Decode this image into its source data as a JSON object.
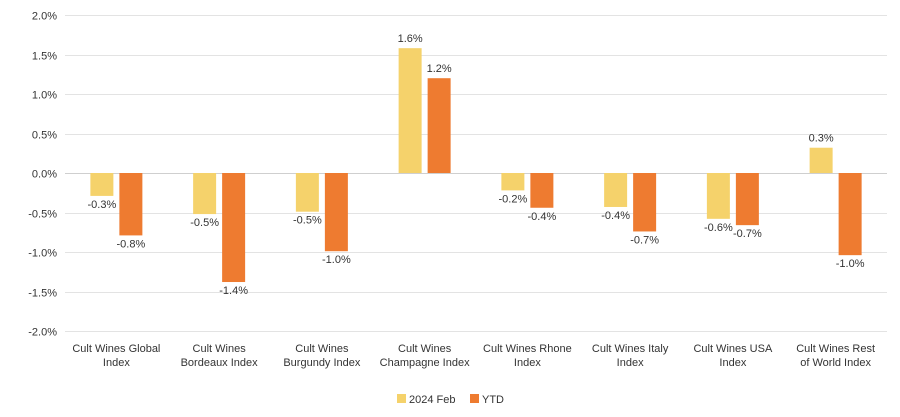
{
  "chart_data": {
    "type": "bar",
    "categories": [
      [
        "Cult Wines Global",
        "Index"
      ],
      [
        "Cult Wines",
        "Bordeaux Index"
      ],
      [
        "Cult Wines",
        "Burgundy Index"
      ],
      [
        "Cult Wines",
        "Champagne Index"
      ],
      [
        "Cult Wines Rhone",
        "Index"
      ],
      [
        "Cult Wines Italy",
        "Index"
      ],
      [
        "Cult Wines USA",
        "Index"
      ],
      [
        "Cult Wines Rest",
        "of World Index"
      ]
    ],
    "series": [
      {
        "name": "2024 Feb",
        "color": "#f5d26b",
        "values": [
          -0.29,
          -0.52,
          -0.49,
          1.58,
          -0.22,
          -0.43,
          -0.58,
          0.32
        ],
        "labels": [
          "-0.3%",
          "-0.5%",
          "-0.5%",
          "1.6%",
          "-0.2%",
          "-0.4%",
          "-0.6%",
          "0.3%"
        ]
      },
      {
        "name": "YTD",
        "color": "#ee7b30",
        "values": [
          -0.79,
          -1.38,
          -0.99,
          1.2,
          -0.44,
          -0.74,
          -0.66,
          -1.04
        ],
        "labels": [
          "-0.8%",
          "-1.4%",
          "-1.0%",
          "1.2%",
          "-0.4%",
          "-0.7%",
          "-0.7%",
          "-1.0%"
        ]
      }
    ],
    "y_ticks": [
      2.0,
      1.5,
      1.0,
      0.5,
      0.0,
      -0.5,
      -1.0,
      -1.5,
      -2.0
    ],
    "y_tick_labels": [
      "2.0%",
      "1.5%",
      "1.0%",
      "0.5%",
      "0.0%",
      "-0.5%",
      "-1.0%",
      "-1.5%",
      "-2.0%"
    ],
    "ylim": [
      -2.0,
      2.0
    ],
    "grid": true,
    "legend": "bottom-center",
    "title": "",
    "xlabel": "",
    "ylabel": ""
  }
}
